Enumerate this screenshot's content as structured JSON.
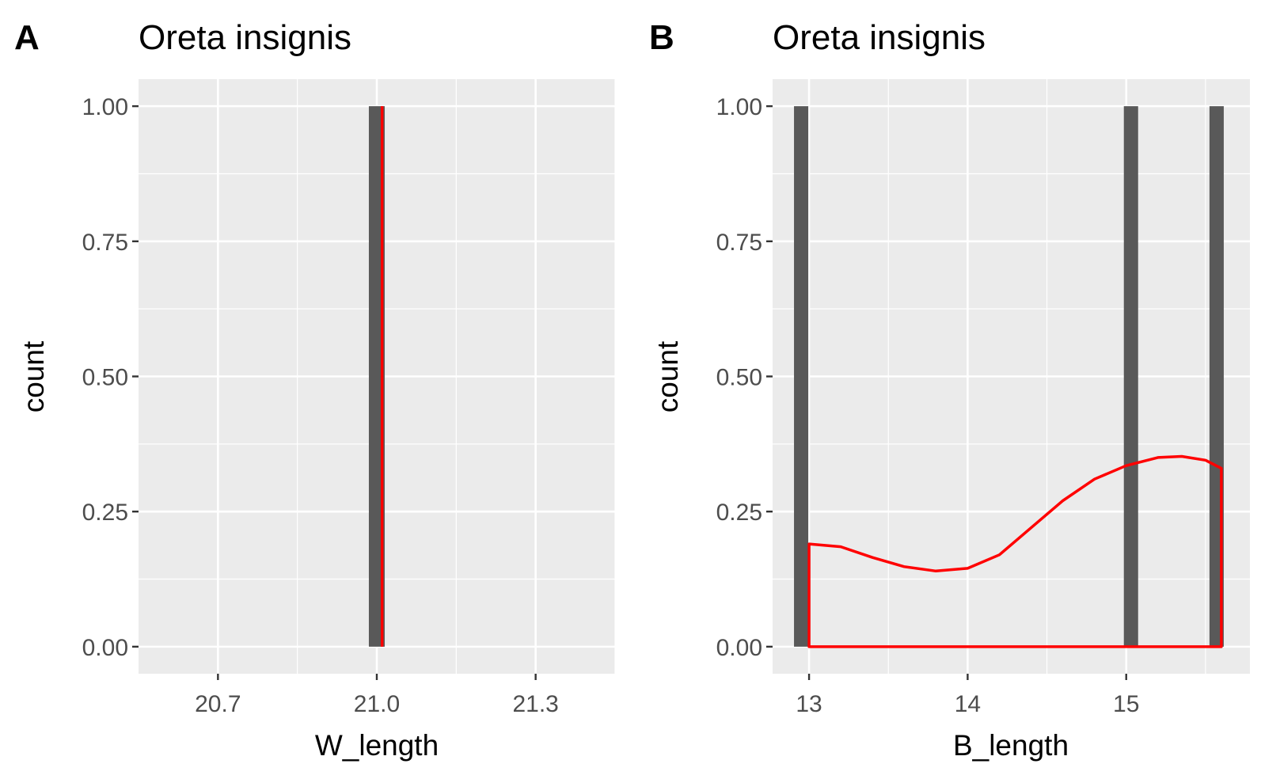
{
  "chart_data": [
    {
      "type": "bar",
      "panel_tag": "A",
      "title": "Oreta insignis",
      "xlabel": "W_length",
      "ylabel": "count",
      "x_ticks": [
        "20.7",
        "21.0",
        "21.3"
      ],
      "x_tick_values": [
        20.7,
        21.0,
        21.3
      ],
      "xlim": [
        20.55,
        21.45
      ],
      "y_ticks": [
        "0.00",
        "0.25",
        "0.50",
        "0.75",
        "1.00"
      ],
      "y_tick_values": [
        0,
        0.25,
        0.5,
        0.75,
        1.0
      ],
      "ylim": [
        -0.05,
        1.05
      ],
      "bars": [
        {
          "x": 21.0,
          "width": 0.03,
          "count": 1
        }
      ],
      "density": {
        "type": "vertical-line",
        "x": 21.01,
        "y": [
          0,
          1.0
        ]
      },
      "colors": {
        "bar": "#595959",
        "density": "#ff0000",
        "panel": "#ebebeb",
        "grid": "#ffffff"
      },
      "grid": true
    },
    {
      "type": "bar",
      "panel_tag": "B",
      "title": "Oreta insignis",
      "xlabel": "B_length",
      "ylabel": "count",
      "x_ticks": [
        "13",
        "14",
        "15"
      ],
      "x_tick_values": [
        13,
        14,
        15
      ],
      "xlim": [
        12.77,
        15.78
      ],
      "y_ticks": [
        "0.00",
        "0.25",
        "0.50",
        "0.75",
        "1.00"
      ],
      "y_tick_values": [
        0,
        0.25,
        0.5,
        0.75,
        1.0
      ],
      "ylim": [
        -0.05,
        1.05
      ],
      "bars": [
        {
          "x": 12.95,
          "width": 0.09,
          "count": 1
        },
        {
          "x": 15.03,
          "width": 0.09,
          "count": 1
        },
        {
          "x": 15.57,
          "width": 0.09,
          "count": 1
        }
      ],
      "density": {
        "type": "polygon",
        "x": [
          13.0,
          13.2,
          13.4,
          13.6,
          13.8,
          14.0,
          14.2,
          14.4,
          14.6,
          14.8,
          15.0,
          15.2,
          15.35,
          15.5,
          15.6,
          15.6,
          13.0
        ],
        "y": [
          0.19,
          0.185,
          0.165,
          0.148,
          0.14,
          0.145,
          0.17,
          0.22,
          0.27,
          0.31,
          0.335,
          0.35,
          0.352,
          0.345,
          0.33,
          0.0,
          0.0
        ]
      },
      "colors": {
        "bar": "#595959",
        "density": "#ff0000",
        "panel": "#ebebeb",
        "grid": "#ffffff"
      },
      "grid": true
    }
  ]
}
